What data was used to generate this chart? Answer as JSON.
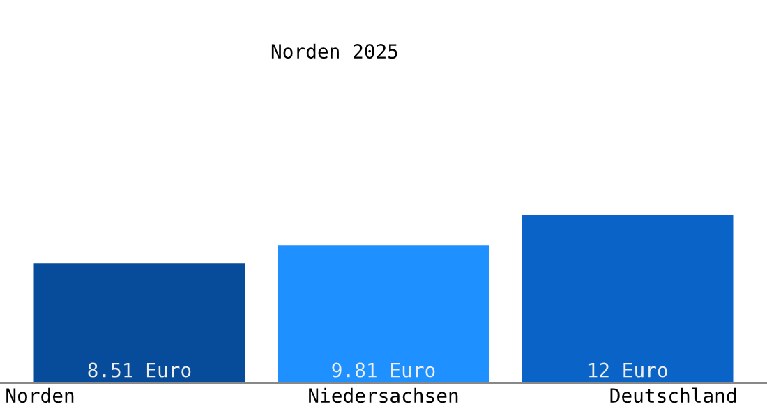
{
  "chart_data": {
    "type": "bar",
    "title": "Norden 2025",
    "categories": [
      "Norden",
      "Niedersachsen",
      "Deutschland"
    ],
    "values": [
      8.51,
      9.81,
      12
    ],
    "colors": [
      "#064c9a",
      "#1e90ff",
      "#0a64c8"
    ],
    "value_labels": [
      "8.51 Euro",
      "9.81 Euro",
      "12 Euro"
    ]
  }
}
